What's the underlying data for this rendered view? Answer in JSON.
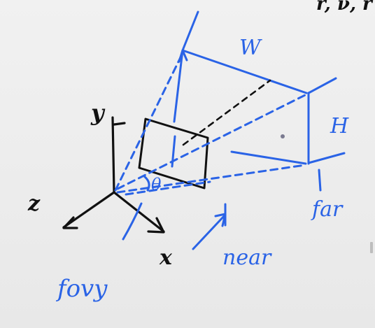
{
  "colors": {
    "ink_black": "#111111",
    "ink_blue": "#2a63e6",
    "background": "#ececec"
  },
  "labels": {
    "y_axis": "y",
    "z_axis": "z",
    "x_axis": "x",
    "width": "W",
    "height": "H",
    "far": "far",
    "near": "near",
    "fovy": "fovy",
    "angle": "θ",
    "top_fragment": "r, ν, r"
  }
}
